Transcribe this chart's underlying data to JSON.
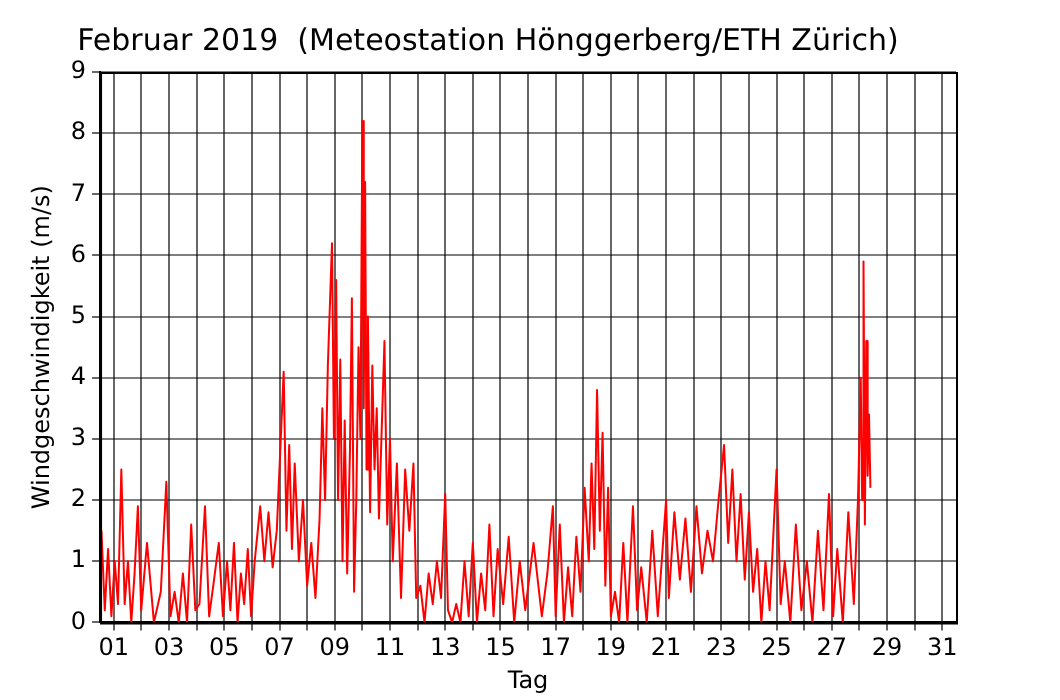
{
  "chart_data": {
    "type": "line",
    "title": "Februar 2019  (Meteostation Hönggerberg/ETH Zürich)",
    "xlabel": "Tag",
    "ylabel": "Windgeschwindigkeit (m/s)",
    "xlim": [
      0.5,
      31.5
    ],
    "ylim": [
      0,
      9
    ],
    "xticks": [
      {
        "value": 1,
        "label": "01"
      },
      {
        "value": 2,
        "label": null
      },
      {
        "value": 3,
        "label": "03"
      },
      {
        "value": 4,
        "label": null
      },
      {
        "value": 5,
        "label": "05"
      },
      {
        "value": 6,
        "label": null
      },
      {
        "value": 7,
        "label": "07"
      },
      {
        "value": 8,
        "label": null
      },
      {
        "value": 9,
        "label": "09"
      },
      {
        "value": 10,
        "label": null
      },
      {
        "value": 11,
        "label": "11"
      },
      {
        "value": 12,
        "label": null
      },
      {
        "value": 13,
        "label": "13"
      },
      {
        "value": 14,
        "label": null
      },
      {
        "value": 15,
        "label": "15"
      },
      {
        "value": 16,
        "label": null
      },
      {
        "value": 17,
        "label": "17"
      },
      {
        "value": 18,
        "label": null
      },
      {
        "value": 19,
        "label": "19"
      },
      {
        "value": 20,
        "label": null
      },
      {
        "value": 21,
        "label": "21"
      },
      {
        "value": 22,
        "label": null
      },
      {
        "value": 23,
        "label": "23"
      },
      {
        "value": 24,
        "label": null
      },
      {
        "value": 25,
        "label": "25"
      },
      {
        "value": 26,
        "label": null
      },
      {
        "value": 27,
        "label": "27"
      },
      {
        "value": 28,
        "label": null
      },
      {
        "value": 29,
        "label": "29"
      },
      {
        "value": 30,
        "label": null
      },
      {
        "value": 31,
        "label": "31"
      }
    ],
    "yticks": [
      0,
      1,
      2,
      3,
      4,
      5,
      6,
      7,
      8,
      9
    ],
    "grid": true,
    "marker": "none",
    "line_style": "solid",
    "series": [
      {
        "color": "#ff0000",
        "x": [
          0.55,
          0.67,
          0.79,
          0.91,
          1.03,
          1.15,
          1.27,
          1.39,
          1.51,
          1.63,
          1.75,
          1.87,
          1.99,
          2.2,
          2.45,
          2.7,
          2.9,
          3.05,
          3.2,
          3.35,
          3.5,
          3.65,
          3.8,
          3.95,
          4.1,
          4.3,
          4.45,
          4.6,
          4.8,
          4.95,
          5.1,
          5.22,
          5.35,
          5.48,
          5.6,
          5.72,
          5.85,
          5.97,
          6.1,
          6.3,
          6.45,
          6.6,
          6.75,
          6.9,
          7.15,
          7.25,
          7.35,
          7.45,
          7.55,
          7.7,
          7.85,
          8.0,
          8.15,
          8.3,
          8.45,
          8.55,
          8.65,
          8.75,
          8.9,
          8.97,
          9.05,
          9.12,
          9.2,
          9.28,
          9.36,
          9.45,
          9.55,
          9.62,
          9.7,
          9.78,
          9.86,
          9.93,
          10.0,
          10.05,
          10.1,
          10.15,
          10.2,
          10.28,
          10.36,
          10.44,
          10.52,
          10.6,
          10.8,
          10.9,
          11.0,
          11.1,
          11.25,
          11.4,
          11.55,
          11.7,
          11.85,
          11.95,
          12.1,
          12.25,
          12.4,
          12.55,
          12.7,
          12.85,
          13.0,
          13.1,
          13.25,
          13.4,
          13.55,
          13.7,
          13.85,
          14.0,
          14.15,
          14.3,
          14.45,
          14.6,
          14.75,
          14.9,
          15.1,
          15.3,
          15.5,
          15.7,
          15.9,
          16.2,
          16.5,
          16.7,
          16.9,
          17.0,
          17.15,
          17.3,
          17.45,
          17.6,
          17.75,
          17.9,
          18.05,
          18.2,
          18.3,
          18.4,
          18.5,
          18.6,
          18.7,
          18.8,
          18.9,
          19.0,
          19.15,
          19.3,
          19.45,
          19.6,
          19.8,
          19.95,
          20.1,
          20.3,
          20.5,
          20.7,
          21.0,
          21.1,
          21.3,
          21.5,
          21.7,
          21.9,
          22.1,
          22.3,
          22.5,
          22.7,
          22.9,
          23.1,
          23.25,
          23.4,
          23.55,
          23.7,
          23.85,
          24.0,
          24.15,
          24.3,
          24.45,
          24.6,
          24.75,
          25.0,
          25.15,
          25.3,
          25.5,
          25.7,
          25.9,
          26.1,
          26.3,
          26.5,
          26.7,
          26.9,
          27.05,
          27.2,
          27.4,
          27.6,
          27.8,
          27.95,
          28.05,
          28.1,
          28.15,
          28.2,
          28.25,
          28.3,
          28.35,
          28.4
        ],
        "values": [
          1.5,
          0.2,
          1.2,
          0.1,
          1.0,
          0.3,
          2.5,
          0.3,
          1.0,
          0,
          0.8,
          1.9,
          0.2,
          1.3,
          0,
          0.5,
          2.3,
          0.1,
          0.5,
          0,
          0.8,
          0,
          1.6,
          0.2,
          0.3,
          1.9,
          0.1,
          0.6,
          1.3,
          0.1,
          1.0,
          0.2,
          1.3,
          0,
          0.8,
          0.3,
          1.2,
          0.1,
          1.0,
          1.9,
          1.0,
          1.8,
          0.9,
          1.5,
          4.1,
          1.5,
          2.9,
          1.2,
          2.6,
          1.0,
          2.0,
          0.6,
          1.3,
          0.4,
          1.7,
          3.5,
          2.0,
          4.2,
          6.2,
          3.0,
          5.6,
          2.0,
          4.3,
          1.0,
          3.3,
          0.8,
          2.8,
          5.3,
          0.5,
          2.0,
          4.5,
          3.0,
          8.2,
          3.5,
          7.2,
          2.5,
          5.0,
          1.8,
          4.2,
          2.5,
          3.5,
          1.7,
          4.6,
          1.6,
          3.0,
          1.0,
          2.6,
          0.4,
          2.5,
          1.5,
          2.6,
          0.4,
          0.6,
          0,
          0.8,
          0.3,
          1.0,
          0.4,
          2.1,
          0.2,
          0,
          0.3,
          0,
          1.0,
          0.1,
          1.3,
          0,
          0.8,
          0.2,
          1.6,
          0.1,
          1.2,
          0.3,
          1.4,
          0,
          1.0,
          0.2,
          1.3,
          0.1,
          0.8,
          1.9,
          0.1,
          1.6,
          0,
          0.9,
          0.1,
          1.4,
          0.5,
          2.2,
          1.0,
          2.6,
          1.2,
          3.8,
          1.5,
          3.1,
          0.6,
          2.2,
          0.1,
          0.5,
          0,
          1.3,
          0,
          1.9,
          0.2,
          0.9,
          0,
          1.5,
          0.1,
          2.0,
          0.4,
          1.8,
          0.7,
          1.7,
          0.5,
          1.9,
          0.8,
          1.5,
          1.0,
          2.0,
          2.9,
          1.3,
          2.5,
          1.0,
          2.1,
          0.7,
          1.8,
          0.5,
          1.2,
          0,
          1.0,
          0.2,
          2.5,
          0.3,
          1.0,
          0,
          1.6,
          0.2,
          1.0,
          0,
          1.5,
          0.2,
          2.1,
          0.1,
          1.2,
          0,
          1.8,
          0.3,
          2.0,
          4.0,
          2.0,
          5.9,
          1.6,
          4.6,
          2.4,
          3.4,
          2.2
        ]
      }
    ]
  }
}
